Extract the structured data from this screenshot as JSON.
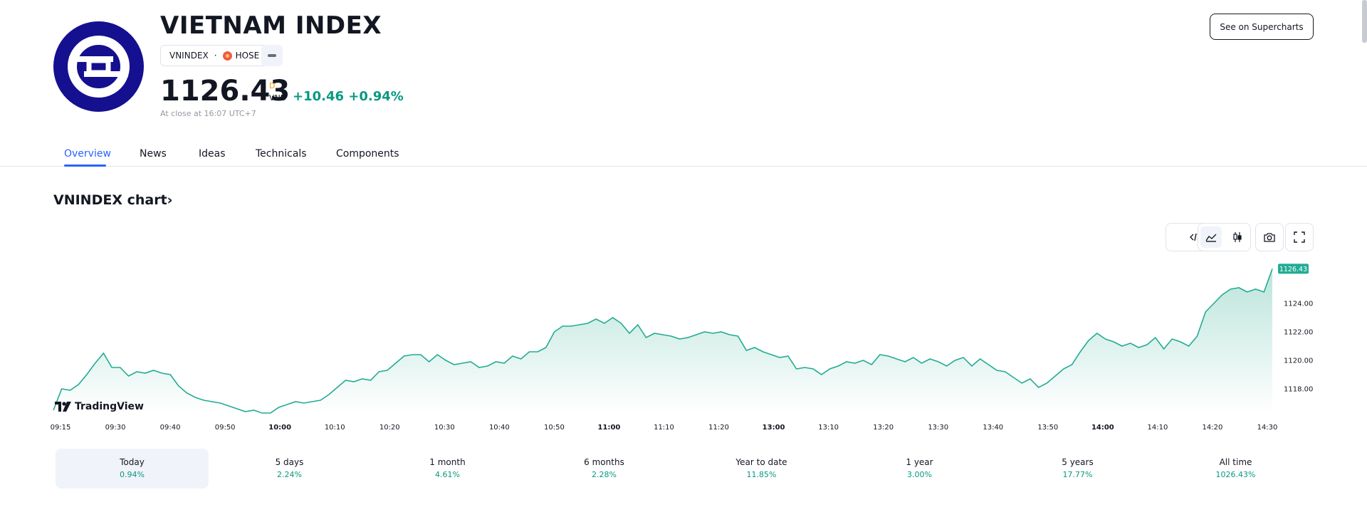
{
  "header": {
    "title": "VIETNAM INDEX",
    "symbol": "VNINDEX",
    "separator": "·",
    "exchange": "HOSE",
    "price": "1126.43",
    "price_flag": "D",
    "currency": "VND",
    "change": "+10.46",
    "change_pct": "+0.94%",
    "close_time": "At close at 16:07 UTC+7",
    "supercharts_label": "See on Supercharts",
    "logo_icon": "vnindex-logo-icon",
    "exchange_icon": "hose-exchange-icon"
  },
  "tabs": [
    {
      "label": "Overview",
      "active": true
    },
    {
      "label": "News",
      "active": false
    },
    {
      "label": "Ideas",
      "active": false
    },
    {
      "label": "Technicals",
      "active": false
    },
    {
      "label": "Components",
      "active": false
    }
  ],
  "chart_section": {
    "title": "VNINDEX chart",
    "chevron": "›",
    "toolbar": [
      {
        "icon": "embed-code-icon"
      },
      {
        "icon": "area-chart-icon",
        "active": true
      },
      {
        "icon": "candles-icon"
      },
      {
        "icon": "camera-icon"
      },
      {
        "icon": "fullscreen-icon"
      }
    ],
    "watermark": "TradingView"
  },
  "chart_data": {
    "type": "area",
    "title": "",
    "xlabel": "",
    "ylabel": "",
    "x_ticks": [
      "09:15",
      "09:30",
      "09:40",
      "09:50",
      "10:00",
      "10:10",
      "10:20",
      "10:30",
      "10:40",
      "10:50",
      "11:00",
      "11:10",
      "11:20",
      "13:00",
      "13:10",
      "13:20",
      "13:30",
      "13:40",
      "13:50",
      "14:00",
      "14:10",
      "14:20",
      "14:30"
    ],
    "bold_ticks": [
      "10:00",
      "11:00",
      "13:00",
      "14:00"
    ],
    "y_ticks": [
      1118.0,
      1120.0,
      1122.0,
      1124.0
    ],
    "y_tick_labels": [
      "1118.00",
      "1120.00",
      "1122.00",
      "1124.00"
    ],
    "ylim": [
      1116.3,
      1126.9
    ],
    "last_value": 1126.43,
    "last_value_label": "1126.43",
    "grid": false,
    "colors": {
      "line": "#22ab94",
      "fill_top": "#b8e3d9",
      "fill_bottom": "#ffffff",
      "badge": "#22ab94"
    },
    "series": [
      {
        "points": [
          [
            0,
            1116.5
          ],
          [
            1,
            1118.0
          ],
          [
            2,
            1117.9
          ],
          [
            3,
            1118.3
          ],
          [
            4,
            1119.0
          ],
          [
            5,
            1119.8
          ],
          [
            6,
            1120.5
          ],
          [
            7,
            1119.5
          ],
          [
            8,
            1119.5
          ],
          [
            9,
            1118.9
          ],
          [
            10,
            1119.2
          ],
          [
            11,
            1119.1
          ],
          [
            12,
            1119.3
          ],
          [
            13,
            1119.1
          ],
          [
            14,
            1119.0
          ],
          [
            15,
            1118.2
          ],
          [
            16,
            1117.7
          ],
          [
            17,
            1117.4
          ],
          [
            18,
            1117.2
          ],
          [
            19,
            1117.1
          ],
          [
            20,
            1117.0
          ],
          [
            21,
            1116.8
          ],
          [
            22,
            1116.6
          ],
          [
            23,
            1116.4
          ],
          [
            24,
            1116.5
          ],
          [
            25,
            1116.3
          ],
          [
            26,
            1116.3
          ],
          [
            27,
            1116.7
          ],
          [
            28,
            1116.9
          ],
          [
            29,
            1117.1
          ],
          [
            30,
            1117.0
          ],
          [
            31,
            1117.1
          ],
          [
            32,
            1117.2
          ],
          [
            33,
            1117.6
          ],
          [
            34,
            1118.1
          ],
          [
            35,
            1118.6
          ],
          [
            36,
            1118.5
          ],
          [
            37,
            1118.7
          ],
          [
            38,
            1118.6
          ],
          [
            39,
            1119.2
          ],
          [
            40,
            1119.3
          ],
          [
            41,
            1119.8
          ],
          [
            42,
            1120.3
          ],
          [
            43,
            1120.4
          ],
          [
            44,
            1120.4
          ],
          [
            45,
            1119.9
          ],
          [
            46,
            1120.4
          ],
          [
            47,
            1120.0
          ],
          [
            48,
            1119.7
          ],
          [
            49,
            1119.8
          ],
          [
            50,
            1119.9
          ],
          [
            51,
            1119.5
          ],
          [
            52,
            1119.6
          ],
          [
            53,
            1119.9
          ],
          [
            54,
            1119.8
          ],
          [
            55,
            1120.3
          ],
          [
            56,
            1120.1
          ],
          [
            57,
            1120.6
          ],
          [
            58,
            1120.6
          ],
          [
            59,
            1120.9
          ],
          [
            60,
            1122.0
          ],
          [
            61,
            1122.4
          ],
          [
            62,
            1122.4
          ],
          [
            63,
            1122.5
          ],
          [
            64,
            1122.6
          ],
          [
            65,
            1122.9
          ],
          [
            66,
            1122.6
          ],
          [
            67,
            1123.0
          ],
          [
            68,
            1122.6
          ],
          [
            69,
            1121.9
          ],
          [
            70,
            1122.5
          ],
          [
            71,
            1121.6
          ],
          [
            72,
            1121.9
          ],
          [
            73,
            1121.8
          ],
          [
            74,
            1121.7
          ],
          [
            75,
            1121.5
          ],
          [
            76,
            1121.6
          ],
          [
            77,
            1121.8
          ],
          [
            78,
            1122.0
          ],
          [
            79,
            1121.9
          ],
          [
            80,
            1122.0
          ],
          [
            81,
            1121.8
          ],
          [
            82,
            1121.7
          ],
          [
            83,
            1120.7
          ],
          [
            84,
            1120.9
          ],
          [
            85,
            1120.6
          ],
          [
            86,
            1120.4
          ],
          [
            87,
            1120.2
          ],
          [
            88,
            1120.3
          ],
          [
            89,
            1119.4
          ],
          [
            90,
            1119.5
          ],
          [
            91,
            1119.4
          ],
          [
            92,
            1119.0
          ],
          [
            93,
            1119.4
          ],
          [
            94,
            1119.6
          ],
          [
            95,
            1119.9
          ],
          [
            96,
            1119.8
          ],
          [
            97,
            1120.0
          ],
          [
            98,
            1119.7
          ],
          [
            99,
            1120.4
          ],
          [
            100,
            1120.3
          ],
          [
            101,
            1120.1
          ],
          [
            102,
            1119.9
          ],
          [
            103,
            1120.2
          ],
          [
            104,
            1119.8
          ],
          [
            105,
            1120.1
          ],
          [
            106,
            1119.9
          ],
          [
            107,
            1119.6
          ],
          [
            108,
            1120.0
          ],
          [
            109,
            1120.2
          ],
          [
            110,
            1119.6
          ],
          [
            111,
            1120.1
          ],
          [
            112,
            1119.7
          ],
          [
            113,
            1119.3
          ],
          [
            114,
            1119.2
          ],
          [
            115,
            1118.8
          ],
          [
            116,
            1118.4
          ],
          [
            117,
            1118.7
          ],
          [
            118,
            1118.1
          ],
          [
            119,
            1118.4
          ],
          [
            120,
            1118.9
          ],
          [
            121,
            1119.4
          ],
          [
            122,
            1119.7
          ],
          [
            123,
            1120.6
          ],
          [
            124,
            1121.4
          ],
          [
            125,
            1121.9
          ],
          [
            126,
            1121.5
          ],
          [
            127,
            1121.3
          ],
          [
            128,
            1121.0
          ],
          [
            129,
            1121.2
          ],
          [
            130,
            1120.9
          ],
          [
            131,
            1121.1
          ],
          [
            132,
            1121.6
          ],
          [
            133,
            1120.8
          ],
          [
            134,
            1121.5
          ],
          [
            135,
            1121.3
          ],
          [
            136,
            1121.0
          ],
          [
            137,
            1121.7
          ],
          [
            138,
            1123.4
          ],
          [
            139,
            1124.0
          ],
          [
            140,
            1124.6
          ],
          [
            141,
            1125.0
          ],
          [
            142,
            1125.1
          ],
          [
            143,
            1124.8
          ],
          [
            144,
            1125.0
          ],
          [
            145,
            1124.8
          ],
          [
            146,
            1126.43
          ]
        ]
      }
    ]
  },
  "periods": [
    {
      "label": "Today",
      "value": "0.94%",
      "active": true
    },
    {
      "label": "5 days",
      "value": "2.24%",
      "active": false
    },
    {
      "label": "1 month",
      "value": "4.61%",
      "active": false
    },
    {
      "label": "6 months",
      "value": "2.28%",
      "active": false
    },
    {
      "label": "Year to date",
      "value": "11.85%",
      "active": false
    },
    {
      "label": "1 year",
      "value": "3.00%",
      "active": false
    },
    {
      "label": "5 years",
      "value": "17.77%",
      "active": false
    },
    {
      "label": "All time",
      "value": "1026.43%",
      "active": false
    }
  ]
}
